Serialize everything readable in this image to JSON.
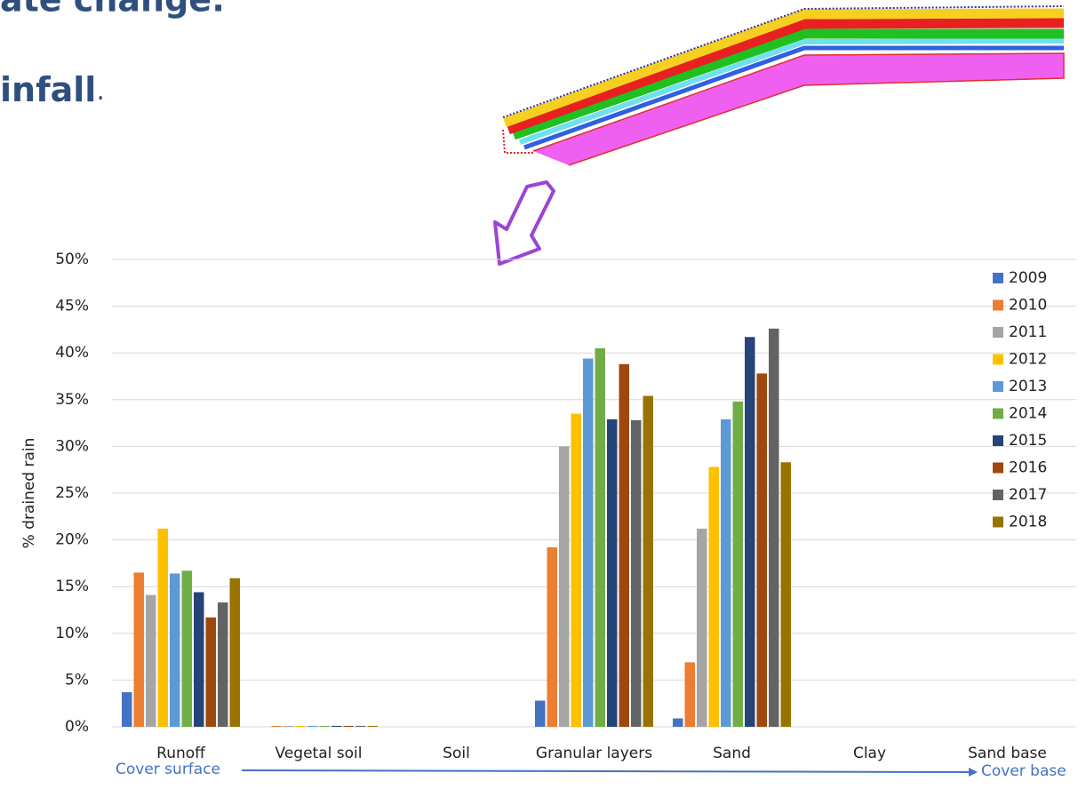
{
  "slide": {
    "title_fragment": "ate change:",
    "subtitle_bold": "infall",
    "subtitle_end": "."
  },
  "chart_data": {
    "type": "bar",
    "y_label": "% drained rain",
    "categories": [
      "Runoff",
      "Vegetal soil",
      "Soil",
      "Granular layers",
      "Sand",
      "Clay",
      "Sand base"
    ],
    "series": [
      {
        "name": "2009",
        "color": "#4472c4",
        "values": [
          3.7,
          0,
          0,
          2.8,
          0.9,
          0,
          0
        ]
      },
      {
        "name": "2010",
        "color": "#ed7d31",
        "values": [
          16.5,
          0.1,
          0,
          19.2,
          6.9,
          0,
          0
        ]
      },
      {
        "name": "2011",
        "color": "#a5a5a5",
        "values": [
          14.1,
          0.1,
          0,
          30.0,
          21.2,
          0,
          0
        ]
      },
      {
        "name": "2012",
        "color": "#ffc000",
        "values": [
          21.2,
          0.1,
          0,
          33.5,
          27.8,
          0,
          0
        ]
      },
      {
        "name": "2013",
        "color": "#5b9bd5",
        "values": [
          16.4,
          0.1,
          0,
          39.4,
          32.9,
          0,
          0
        ]
      },
      {
        "name": "2014",
        "color": "#70ad47",
        "values": [
          16.7,
          0.1,
          0,
          40.5,
          34.8,
          0,
          0
        ]
      },
      {
        "name": "2015",
        "color": "#264478",
        "values": [
          14.4,
          0.1,
          0,
          32.9,
          41.7,
          0,
          0
        ]
      },
      {
        "name": "2016",
        "color": "#9e480e",
        "values": [
          11.7,
          0.1,
          0,
          38.8,
          37.8,
          0,
          0
        ]
      },
      {
        "name": "2017",
        "color": "#636363",
        "values": [
          13.3,
          0.1,
          0,
          32.8,
          42.6,
          0,
          0
        ]
      },
      {
        "name": "2018",
        "color": "#997300",
        "values": [
          15.9,
          0.1,
          0,
          35.4,
          28.3,
          0,
          0
        ]
      }
    ],
    "ylim": [
      0,
      50
    ],
    "yticks": [
      {
        "value": 0,
        "label": "0%"
      },
      {
        "value": 5,
        "label": "5%"
      },
      {
        "value": 10,
        "label": "10%"
      },
      {
        "value": 15,
        "label": "15%"
      },
      {
        "value": 20,
        "label": "20%"
      },
      {
        "value": 25,
        "label": "25%"
      },
      {
        "value": 30,
        "label": "30%"
      },
      {
        "value": 35,
        "label": "35%"
      },
      {
        "value": 40,
        "label": "40%"
      },
      {
        "value": 45,
        "label": "45%"
      },
      {
        "value": 50,
        "label": "50%"
      }
    ],
    "grid": true,
    "axis_start_note": "Cover surface",
    "axis_end_note": "Cover base"
  }
}
